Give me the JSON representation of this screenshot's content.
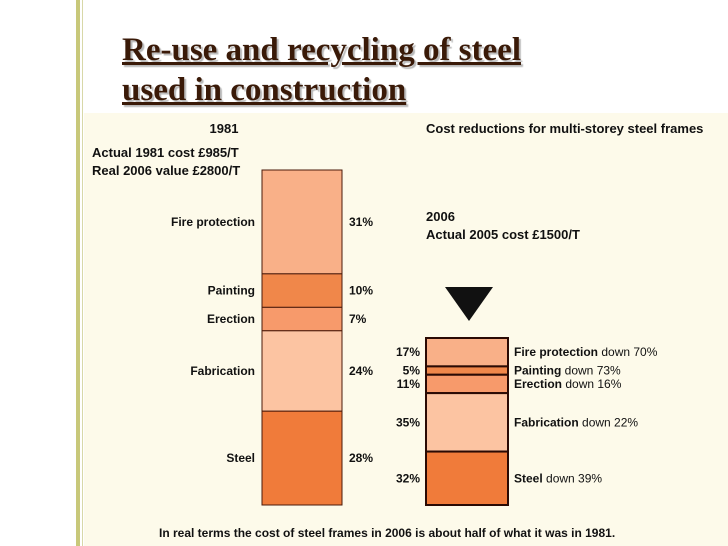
{
  "slide": {
    "title_line1": "Re-use and recycling of steel",
    "title_line2": "used in construction"
  },
  "chart_data": {
    "type": "bar",
    "stacked": true,
    "title": "Cost reductions for multi-storey steel frames",
    "caption": "In real terms the cost of steel frames in 2006 is about half of what it was in 1981.",
    "categories": [
      "1981",
      "2006"
    ],
    "left_notes": [
      "Actual 1981 cost £985/T",
      "Real 2006 value £2800/T"
    ],
    "right_notes": [
      "Actual 2005 cost £1500/T"
    ],
    "series": [
      {
        "name": "Fire protection",
        "color": "#f9b088",
        "values": [
          31,
          17
        ],
        "labels": [
          "31%",
          "17%"
        ],
        "change": "down 70%"
      },
      {
        "name": "Painting",
        "color": "#f0874a",
        "values": [
          10,
          5
        ],
        "labels": [
          "10%",
          "5%"
        ],
        "change": "down 73%"
      },
      {
        "name": "Erection",
        "color": "#f79a6b",
        "values": [
          7,
          11
        ],
        "labels": [
          "7%",
          "11%"
        ],
        "change": "down 16%"
      },
      {
        "name": "Fabrication",
        "color": "#fcc4a2",
        "values": [
          24,
          35
        ],
        "labels": [
          "24%",
          "35%"
        ],
        "change": "down 22%"
      },
      {
        "name": "Steel",
        "color": "#f07b3a",
        "values": [
          28,
          32
        ],
        "labels": [
          "28%",
          "32%"
        ],
        "change": "down 39%"
      }
    ],
    "icon": "down-arrow-icon"
  }
}
